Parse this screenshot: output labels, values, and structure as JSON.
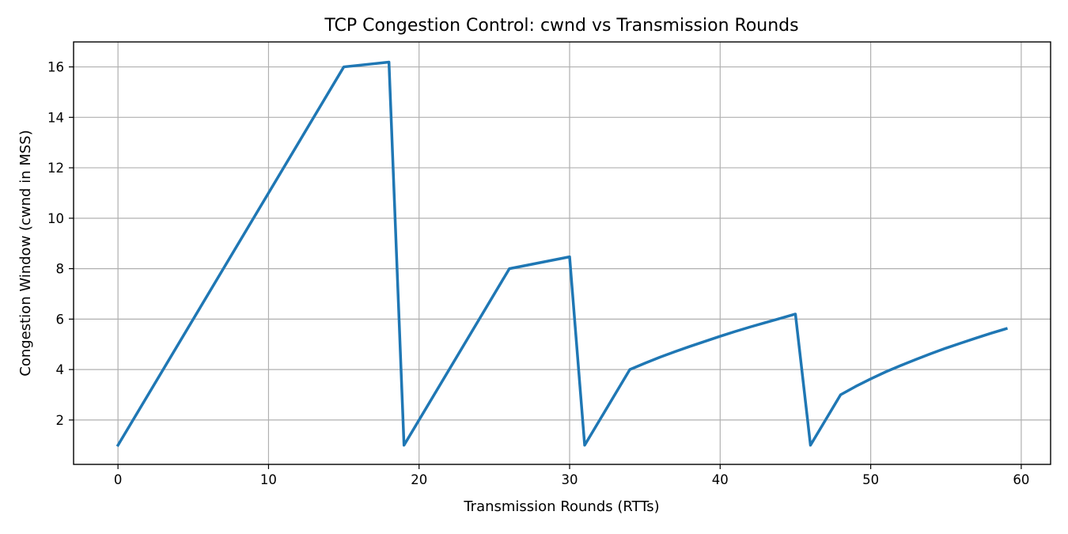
{
  "chart_data": {
    "type": "line",
    "title": "TCP Congestion Control: cwnd vs Transmission Rounds",
    "xlabel": "Transmission Rounds (RTTs)",
    "ylabel": "Congestion Window (cwnd in MSS)",
    "xlim": [
      -2.95,
      61.95
    ],
    "ylim": [
      0.24,
      16.99
    ],
    "xticks": [
      0,
      10,
      20,
      30,
      40,
      50,
      60
    ],
    "yticks": [
      2,
      4,
      6,
      8,
      10,
      12,
      14,
      16
    ],
    "grid": true,
    "colors": {
      "series": "#1f77b4"
    },
    "series": [
      {
        "x": [
          0,
          15,
          18,
          19,
          26,
          30,
          31,
          34,
          35,
          36,
          37,
          38,
          39,
          40,
          41,
          42,
          43,
          44,
          45,
          46,
          48,
          49,
          50,
          51,
          52,
          53,
          54,
          55,
          56,
          57,
          58,
          59
        ],
        "y": [
          1,
          16,
          16.19,
          1,
          8,
          8.47,
          1,
          4,
          4.25,
          4.49,
          4.71,
          4.92,
          5.12,
          5.32,
          5.51,
          5.69,
          5.86,
          6.03,
          6.2,
          1,
          3,
          3.33,
          3.63,
          3.91,
          4.16,
          4.4,
          4.63,
          4.85,
          5.05,
          5.25,
          5.44,
          5.62
        ]
      }
    ]
  }
}
